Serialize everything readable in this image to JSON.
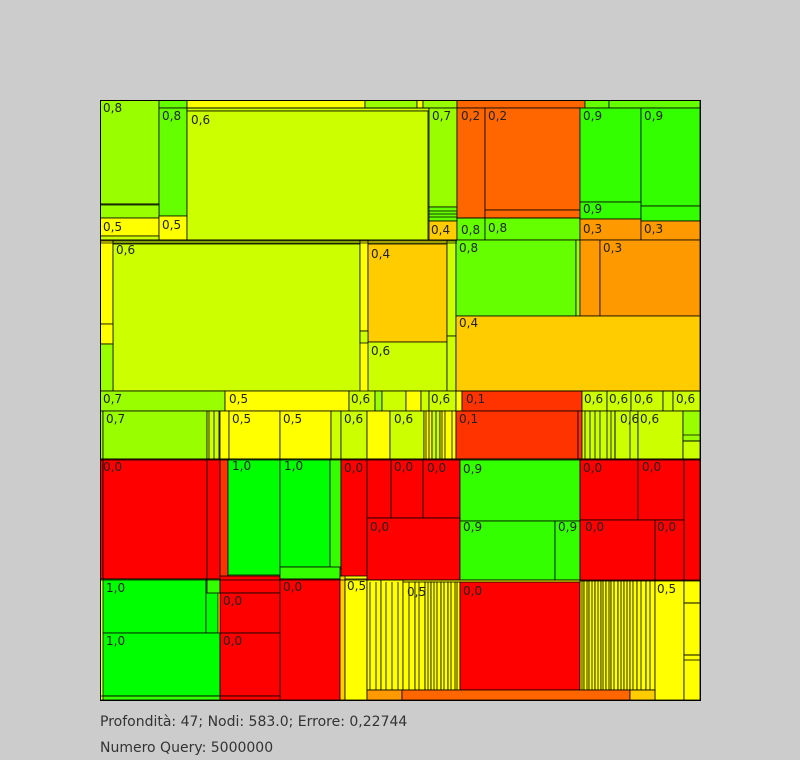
{
  "status": {
    "line1": "Profondità: 47; Nodi: 583.0; Errore: 0,22744",
    "line2": "Numero Query: 5000000"
  },
  "palette": {
    "0,0": "#ff0000",
    "0,1": "#ff3300",
    "0,2": "#ff6600",
    "0,3": "#ff9900",
    "0,4": "#ffcc00",
    "0,5": "#ffff00",
    "0,6": "#ccff00",
    "0,7": "#99ff00",
    "0,8": "#66ff00",
    "0,9": "#33ff00",
    "1,0": "#00ff00"
  },
  "labels": [
    "0,8",
    "0,8",
    "0,6",
    "0,7",
    "0,2",
    "0,2",
    "0,9",
    "0,9",
    "0,9",
    "0,5",
    "0,5",
    "0,4",
    "0,8",
    "0,8",
    "0,3",
    "0,3",
    "0,6",
    "0,4",
    "0,8",
    "0,3",
    "0,4",
    "0,6",
    "0,7",
    "0,5",
    "0,6",
    "0,6",
    "0,1",
    "0,6",
    "0,6",
    "0,6",
    "0,6",
    "0,7",
    "0,5",
    "0,5",
    "0,6",
    "0,6",
    "0,1",
    "0,6",
    "0,6",
    "0,0",
    "1,0",
    "1,0",
    "0,0",
    "0,0",
    "0,0",
    "0,9",
    "0,0",
    "0,0",
    "0,0",
    "0,9",
    "0,9",
    "0,0",
    "0,0",
    "1,0",
    "0,0",
    "0,0",
    "0,5",
    "0,5",
    "0,0",
    "0,5",
    "1,0",
    "0,0"
  ]
}
